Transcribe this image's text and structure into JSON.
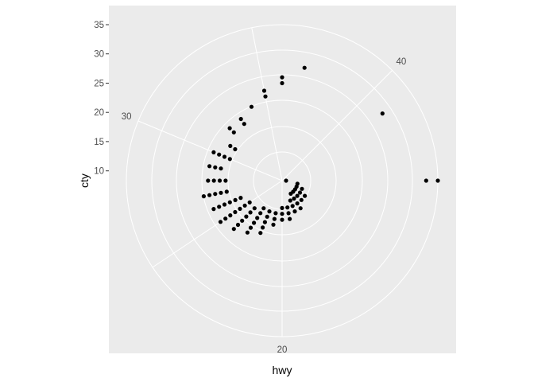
{
  "chart_data": {
    "type": "scatter",
    "coord": "polar",
    "xlabel": "hwy",
    "ylabel": "cty",
    "theta_ticks": [
      "20",
      "30",
      "40"
    ],
    "r_ticks": [
      "10",
      "15",
      "20",
      "25",
      "30",
      "35"
    ],
    "xlim": [
      12,
      44
    ],
    "ylim": [
      9,
      35
    ],
    "grid": true,
    "colors": {
      "panel": "#ebebeb",
      "grid": "#ffffff",
      "point": "#000000"
    },
    "points": [
      {
        "x": 12,
        "y": 9
      },
      {
        "x": 44,
        "y": 35
      },
      {
        "x": 44,
        "y": 33
      },
      {
        "x": 41,
        "y": 29
      },
      {
        "x": 37,
        "y": 28
      },
      {
        "x": 36,
        "y": 26
      },
      {
        "x": 36,
        "y": 25
      },
      {
        "x": 35,
        "y": 24
      },
      {
        "x": 35,
        "y": 23
      },
      {
        "x": 34,
        "y": 22
      },
      {
        "x": 33,
        "y": 21
      },
      {
        "x": 33,
        "y": 20
      },
      {
        "x": 32,
        "y": 21
      },
      {
        "x": 32,
        "y": 20
      },
      {
        "x": 31,
        "y": 19
      },
      {
        "x": 31,
        "y": 18
      },
      {
        "x": 30,
        "y": 18
      },
      {
        "x": 30,
        "y": 19
      },
      {
        "x": 30,
        "y": 20
      },
      {
        "x": 30,
        "y": 21
      },
      {
        "x": 29,
        "y": 19
      },
      {
        "x": 29,
        "y": 20
      },
      {
        "x": 29,
        "y": 21
      },
      {
        "x": 28,
        "y": 18
      },
      {
        "x": 28,
        "y": 19
      },
      {
        "x": 28,
        "y": 20
      },
      {
        "x": 28,
        "y": 21
      },
      {
        "x": 27,
        "y": 18
      },
      {
        "x": 27,
        "y": 19
      },
      {
        "x": 27,
        "y": 20
      },
      {
        "x": 27,
        "y": 21
      },
      {
        "x": 27,
        "y": 22
      },
      {
        "x": 26,
        "y": 16
      },
      {
        "x": 26,
        "y": 17
      },
      {
        "x": 26,
        "y": 18
      },
      {
        "x": 26,
        "y": 19
      },
      {
        "x": 26,
        "y": 20
      },
      {
        "x": 26,
        "y": 21
      },
      {
        "x": 25,
        "y": 15
      },
      {
        "x": 25,
        "y": 16
      },
      {
        "x": 25,
        "y": 17
      },
      {
        "x": 25,
        "y": 18
      },
      {
        "x": 25,
        "y": 19
      },
      {
        "x": 25,
        "y": 20
      },
      {
        "x": 25,
        "y": 21
      },
      {
        "x": 24,
        "y": 15
      },
      {
        "x": 24,
        "y": 16
      },
      {
        "x": 24,
        "y": 17
      },
      {
        "x": 24,
        "y": 18
      },
      {
        "x": 24,
        "y": 19
      },
      {
        "x": 24,
        "y": 20
      },
      {
        "x": 23,
        "y": 14
      },
      {
        "x": 23,
        "y": 15
      },
      {
        "x": 23,
        "y": 16
      },
      {
        "x": 23,
        "y": 17
      },
      {
        "x": 23,
        "y": 18
      },
      {
        "x": 23,
        "y": 19
      },
      {
        "x": 22,
        "y": 14
      },
      {
        "x": 22,
        "y": 15
      },
      {
        "x": 22,
        "y": 16
      },
      {
        "x": 22,
        "y": 17
      },
      {
        "x": 22,
        "y": 18
      },
      {
        "x": 21,
        "y": 14
      },
      {
        "x": 21,
        "y": 15
      },
      {
        "x": 21,
        "y": 16
      },
      {
        "x": 20,
        "y": 13
      },
      {
        "x": 20,
        "y": 14
      },
      {
        "x": 20,
        "y": 15
      },
      {
        "x": 19,
        "y": 13
      },
      {
        "x": 19,
        "y": 14
      },
      {
        "x": 19,
        "y": 15
      },
      {
        "x": 18,
        "y": 12
      },
      {
        "x": 18,
        "y": 13
      },
      {
        "x": 18,
        "y": 14
      },
      {
        "x": 17,
        "y": 11
      },
      {
        "x": 17,
        "y": 12
      },
      {
        "x": 17,
        "y": 13
      },
      {
        "x": 17,
        "y": 14
      },
      {
        "x": 16,
        "y": 11
      },
      {
        "x": 16,
        "y": 12
      },
      {
        "x": 16,
        "y": 13
      },
      {
        "x": 15,
        "y": 11
      },
      {
        "x": 15,
        "y": 12
      },
      {
        "x": 15,
        "y": 13
      },
      {
        "x": 14,
        "y": 11
      },
      {
        "x": 14,
        "y": 12
      },
      {
        "x": 13,
        "y": 11
      }
    ]
  }
}
